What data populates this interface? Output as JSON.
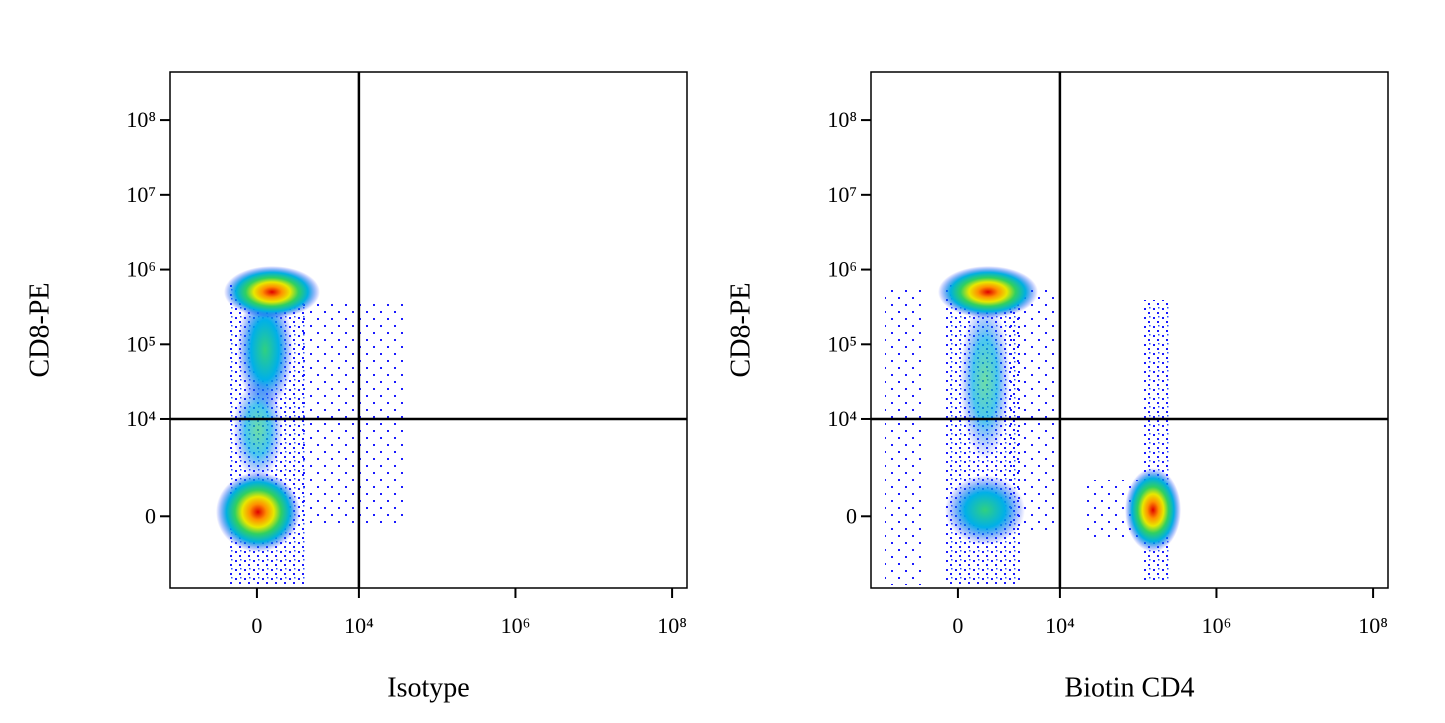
{
  "chart_data": [
    {
      "type": "density",
      "x_label": "Isotype",
      "y_label": "CD8-PE",
      "xlim": [
        -6400,
        155000000
      ],
      "ylim": [
        -4500,
        440000000
      ],
      "xticks": [
        0,
        {
          "value": 10000,
          "label": "10⁴"
        },
        {
          "value": 1000000,
          "label": "10⁶"
        },
        {
          "value": 100000000,
          "label": "10⁸"
        }
      ],
      "yticks": [
        0,
        {
          "value": 10000,
          "label": "10⁴"
        },
        {
          "value": 100000,
          "label": "10⁵"
        },
        {
          "value": 1000000,
          "label": "10⁶"
        },
        {
          "value": 10000000,
          "label": "10⁷"
        },
        {
          "value": 100000000,
          "label": "10⁸"
        }
      ],
      "quadrant_x": 10000,
      "quadrant_y": 10000
    },
    {
      "type": "density",
      "x_label": "Biotin CD4",
      "y_label": "CD8-PE",
      "xlim": [
        -6400,
        155000000
      ],
      "ylim": [
        -4500,
        440000000
      ],
      "xticks": [
        0,
        {
          "value": 10000,
          "label": "10⁴"
        },
        {
          "value": 1000000,
          "label": "10⁶"
        },
        {
          "value": 100000000,
          "label": "10⁸"
        }
      ],
      "yticks": [
        0,
        {
          "value": 10000,
          "label": "10⁴"
        },
        {
          "value": 100000,
          "label": "10⁵"
        },
        {
          "value": 1000000,
          "label": "10⁶"
        },
        {
          "value": 10000000,
          "label": "10⁷"
        },
        {
          "value": 100000000,
          "label": "10⁸"
        }
      ],
      "quadrant_x": 10000,
      "quadrant_y": 10000
    }
  ]
}
